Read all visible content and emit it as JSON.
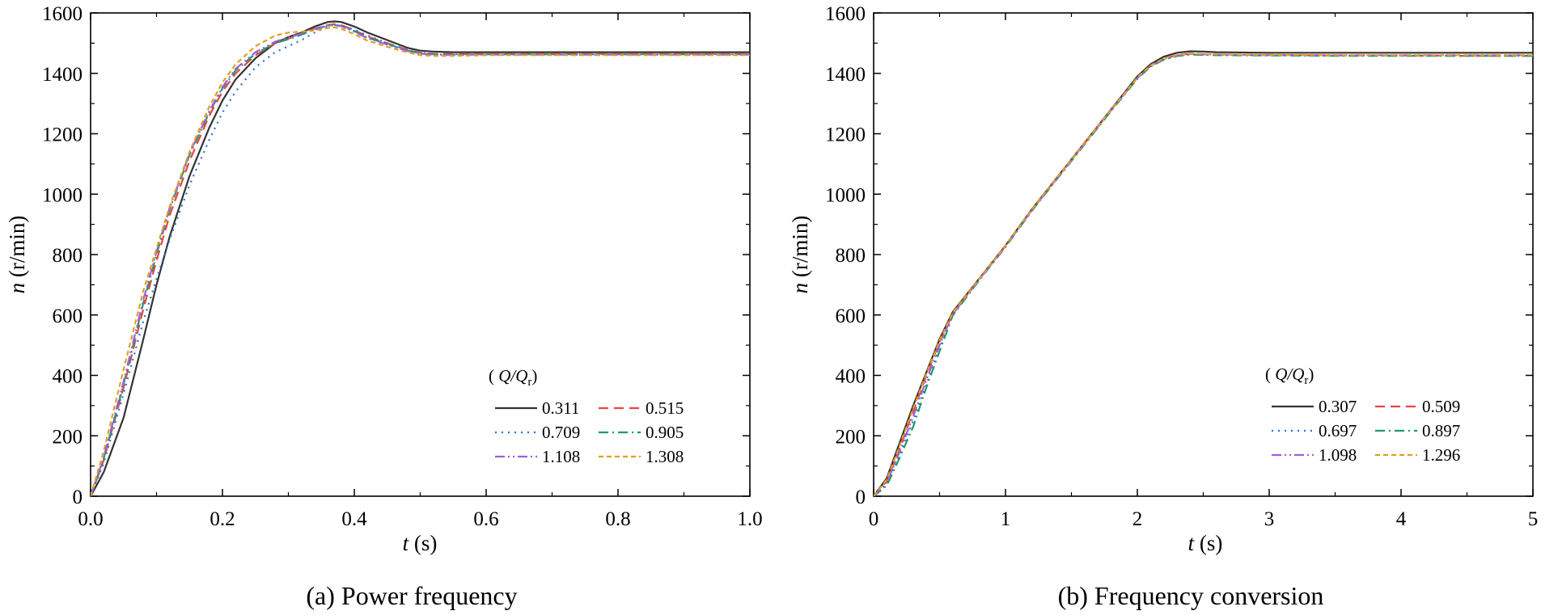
{
  "chart_data": [
    {
      "type": "line",
      "caption": "(a) Power frequency",
      "xlabel_var": "t",
      "xlabel_unit": " (s)",
      "ylabel_var": "n",
      "ylabel_unit": " (r/min)",
      "xlim": [
        0,
        1.0
      ],
      "ylim": [
        0,
        1600
      ],
      "xticks": [
        "0.0",
        "0.2",
        "0.4",
        "0.6",
        "0.8",
        "1.0"
      ],
      "yticks": [
        "0",
        "200",
        "400",
        "600",
        "800",
        "1000",
        "1200",
        "1400",
        "1600"
      ],
      "grid": false,
      "legend_position": "bottom-right",
      "legend_title_var": "Q/Q",
      "legend_title_sub": "r",
      "series": [
        {
          "name": "0.311",
          "color": "#333333",
          "dash": "solid",
          "x": [
            0,
            0.02,
            0.05,
            0.08,
            0.1,
            0.12,
            0.15,
            0.18,
            0.2,
            0.22,
            0.25,
            0.28,
            0.3,
            0.32,
            0.34,
            0.36,
            0.37,
            0.38,
            0.4,
            0.42,
            0.45,
            0.48,
            0.5,
            0.52,
            0.55,
            0.6,
            0.7,
            0.8,
            0.9,
            1.0
          ],
          "y": [
            0,
            80,
            260,
            520,
            700,
            860,
            1060,
            1220,
            1310,
            1380,
            1450,
            1500,
            1520,
            1535,
            1555,
            1570,
            1572,
            1570,
            1555,
            1535,
            1510,
            1485,
            1475,
            1472,
            1470,
            1470,
            1470,
            1470,
            1470,
            1470
          ]
        },
        {
          "name": "0.515",
          "color": "#e8453c",
          "dash": "dashed",
          "x": [
            0,
            0.02,
            0.05,
            0.08,
            0.1,
            0.12,
            0.15,
            0.18,
            0.2,
            0.22,
            0.25,
            0.28,
            0.3,
            0.32,
            0.34,
            0.36,
            0.37,
            0.38,
            0.4,
            0.42,
            0.45,
            0.48,
            0.5,
            0.52,
            0.55,
            0.6,
            0.7,
            0.8,
            0.9,
            1.0
          ],
          "y": [
            0,
            120,
            360,
            620,
            780,
            930,
            1110,
            1260,
            1340,
            1400,
            1460,
            1500,
            1515,
            1530,
            1548,
            1560,
            1563,
            1560,
            1543,
            1522,
            1500,
            1478,
            1468,
            1465,
            1464,
            1465,
            1465,
            1465,
            1465,
            1465
          ]
        },
        {
          "name": "0.709",
          "color": "#2a6fd8",
          "dash": "dotted",
          "x": [
            0,
            0.02,
            0.05,
            0.08,
            0.1,
            0.12,
            0.15,
            0.18,
            0.2,
            0.22,
            0.25,
            0.28,
            0.3,
            0.32,
            0.34,
            0.36,
            0.37,
            0.38,
            0.4,
            0.42,
            0.45,
            0.48,
            0.5,
            0.52,
            0.55,
            0.6,
            0.7,
            0.8,
            0.9,
            1.0
          ],
          "y": [
            0,
            110,
            340,
            580,
            720,
            850,
            1030,
            1180,
            1270,
            1340,
            1420,
            1470,
            1490,
            1510,
            1535,
            1556,
            1560,
            1558,
            1545,
            1525,
            1500,
            1478,
            1468,
            1464,
            1463,
            1463,
            1463,
            1463,
            1463,
            1463
          ]
        },
        {
          "name": "0.905",
          "color": "#1f9a6a",
          "dash": "dashdot",
          "x": [
            0,
            0.02,
            0.05,
            0.08,
            0.1,
            0.12,
            0.15,
            0.18,
            0.2,
            0.22,
            0.25,
            0.28,
            0.3,
            0.32,
            0.34,
            0.36,
            0.37,
            0.38,
            0.4,
            0.42,
            0.45,
            0.48,
            0.5,
            0.52,
            0.55,
            0.6,
            0.7,
            0.8,
            0.9,
            1.0
          ],
          "y": [
            0,
            125,
            370,
            640,
            800,
            950,
            1130,
            1270,
            1350,
            1410,
            1465,
            1500,
            1513,
            1528,
            1545,
            1558,
            1560,
            1557,
            1540,
            1518,
            1497,
            1476,
            1466,
            1463,
            1462,
            1463,
            1463,
            1463,
            1463,
            1463
          ]
        },
        {
          "name": "1.108",
          "color": "#9b5fe0",
          "dash": "dashdotdot",
          "x": [
            0,
            0.02,
            0.05,
            0.08,
            0.1,
            0.12,
            0.15,
            0.18,
            0.2,
            0.22,
            0.25,
            0.28,
            0.3,
            0.32,
            0.34,
            0.36,
            0.37,
            0.38,
            0.4,
            0.42,
            0.45,
            0.48,
            0.5,
            0.52,
            0.55,
            0.6,
            0.7,
            0.8,
            0.9,
            1.0
          ],
          "y": [
            0,
            130,
            380,
            650,
            810,
            955,
            1135,
            1275,
            1355,
            1415,
            1470,
            1505,
            1518,
            1532,
            1548,
            1558,
            1560,
            1556,
            1538,
            1516,
            1495,
            1474,
            1465,
            1462,
            1461,
            1462,
            1462,
            1462,
            1462,
            1462
          ]
        },
        {
          "name": "1.308",
          "color": "#e0a020",
          "dash": "shortdash",
          "x": [
            0,
            0.02,
            0.05,
            0.08,
            0.1,
            0.12,
            0.15,
            0.18,
            0.2,
            0.22,
            0.25,
            0.28,
            0.3,
            0.32,
            0.34,
            0.36,
            0.37,
            0.38,
            0.4,
            0.42,
            0.45,
            0.48,
            0.5,
            0.52,
            0.55,
            0.6,
            0.7,
            0.8,
            0.9,
            1.0
          ],
          "y": [
            0,
            150,
            420,
            680,
            820,
            960,
            1140,
            1290,
            1370,
            1430,
            1490,
            1525,
            1535,
            1538,
            1542,
            1550,
            1552,
            1548,
            1530,
            1508,
            1488,
            1470,
            1460,
            1458,
            1458,
            1460,
            1460,
            1460,
            1460,
            1460
          ]
        }
      ]
    },
    {
      "type": "line",
      "caption": "(b) Frequency conversion",
      "xlabel_var": "t",
      "xlabel_unit": " (s)",
      "ylabel_var": "n",
      "ylabel_unit": " (r/min)",
      "xlim": [
        0,
        5
      ],
      "ylim": [
        0,
        1600
      ],
      "xticks": [
        "0",
        "1",
        "2",
        "3",
        "4",
        "5"
      ],
      "yticks": [
        "0",
        "200",
        "400",
        "600",
        "800",
        "1000",
        "1200",
        "1400",
        "1600"
      ],
      "grid": false,
      "legend_position": "bottom-right",
      "legend_title_var": "Q/Q",
      "legend_title_sub": "r",
      "series": [
        {
          "name": "0.307",
          "color": "#333333",
          "dash": "solid",
          "x": [
            0,
            0.1,
            0.2,
            0.3,
            0.4,
            0.5,
            0.6,
            0.8,
            1.0,
            1.2,
            1.4,
            1.6,
            1.8,
            2.0,
            2.1,
            2.2,
            2.3,
            2.4,
            2.5,
            2.6,
            3.0,
            3.5,
            4.0,
            4.5,
            5.0
          ],
          "y": [
            0,
            60,
            180,
            300,
            410,
            520,
            610,
            720,
            830,
            950,
            1060,
            1170,
            1280,
            1390,
            1430,
            1455,
            1468,
            1473,
            1472,
            1470,
            1468,
            1468,
            1468,
            1468,
            1468
          ]
        },
        {
          "name": "0.509",
          "color": "#e8453c",
          "dash": "dashed",
          "x": [
            0,
            0.1,
            0.2,
            0.3,
            0.4,
            0.5,
            0.6,
            0.8,
            1.0,
            1.2,
            1.4,
            1.6,
            1.8,
            2.0,
            2.1,
            2.2,
            2.3,
            2.4,
            2.5,
            2.6,
            3.0,
            3.5,
            4.0,
            4.5,
            5.0
          ],
          "y": [
            0,
            50,
            160,
            280,
            400,
            510,
            605,
            718,
            828,
            948,
            1058,
            1168,
            1278,
            1385,
            1425,
            1448,
            1460,
            1465,
            1463,
            1462,
            1460,
            1459,
            1459,
            1458,
            1458
          ]
        },
        {
          "name": "0.697",
          "color": "#2a6fd8",
          "dash": "dotted",
          "x": [
            0,
            0.1,
            0.2,
            0.3,
            0.4,
            0.5,
            0.6,
            0.8,
            1.0,
            1.2,
            1.4,
            1.6,
            1.8,
            2.0,
            2.1,
            2.2,
            2.3,
            2.4,
            2.5,
            2.6,
            3.0,
            3.5,
            4.0,
            4.5,
            5.0
          ],
          "y": [
            0,
            40,
            140,
            250,
            370,
            490,
            600,
            716,
            826,
            946,
            1056,
            1166,
            1276,
            1383,
            1423,
            1446,
            1458,
            1463,
            1462,
            1461,
            1460,
            1459,
            1459,
            1459,
            1459
          ]
        },
        {
          "name": "0.897",
          "color": "#1f9a6a",
          "dash": "dashdot",
          "x": [
            0,
            0.1,
            0.2,
            0.3,
            0.4,
            0.5,
            0.6,
            0.8,
            1.0,
            1.2,
            1.4,
            1.6,
            1.8,
            2.0,
            2.1,
            2.2,
            2.3,
            2.4,
            2.5,
            2.6,
            3.0,
            3.5,
            4.0,
            4.5,
            5.0
          ],
          "y": [
            0,
            35,
            130,
            230,
            360,
            480,
            598,
            715,
            825,
            945,
            1055,
            1165,
            1275,
            1382,
            1422,
            1445,
            1457,
            1462,
            1461,
            1460,
            1459,
            1458,
            1458,
            1458,
            1458
          ]
        },
        {
          "name": "1.098",
          "color": "#9b5fe0",
          "dash": "dashdotdot",
          "x": [
            0,
            0.1,
            0.2,
            0.3,
            0.4,
            0.5,
            0.6,
            0.8,
            1.0,
            1.2,
            1.4,
            1.6,
            1.8,
            2.0,
            2.1,
            2.2,
            2.3,
            2.4,
            2.5,
            2.6,
            3.0,
            3.5,
            4.0,
            4.5,
            5.0
          ],
          "y": [
            0,
            45,
            150,
            265,
            385,
            500,
            602,
            717,
            827,
            947,
            1057,
            1167,
            1277,
            1384,
            1424,
            1447,
            1459,
            1464,
            1463,
            1462,
            1461,
            1460,
            1460,
            1460,
            1460
          ]
        },
        {
          "name": "1.296",
          "color": "#e0a020",
          "dash": "shortdash",
          "x": [
            0,
            0.1,
            0.2,
            0.3,
            0.4,
            0.5,
            0.6,
            0.8,
            1.0,
            1.2,
            1.4,
            1.6,
            1.8,
            2.0,
            2.1,
            2.2,
            2.3,
            2.4,
            2.5,
            2.6,
            3.0,
            3.5,
            4.0,
            4.5,
            5.0
          ],
          "y": [
            0,
            55,
            170,
            290,
            405,
            515,
            607,
            719,
            829,
            949,
            1059,
            1169,
            1279,
            1386,
            1426,
            1449,
            1461,
            1466,
            1464,
            1463,
            1461,
            1460,
            1460,
            1460,
            1460
          ]
        }
      ]
    }
  ]
}
